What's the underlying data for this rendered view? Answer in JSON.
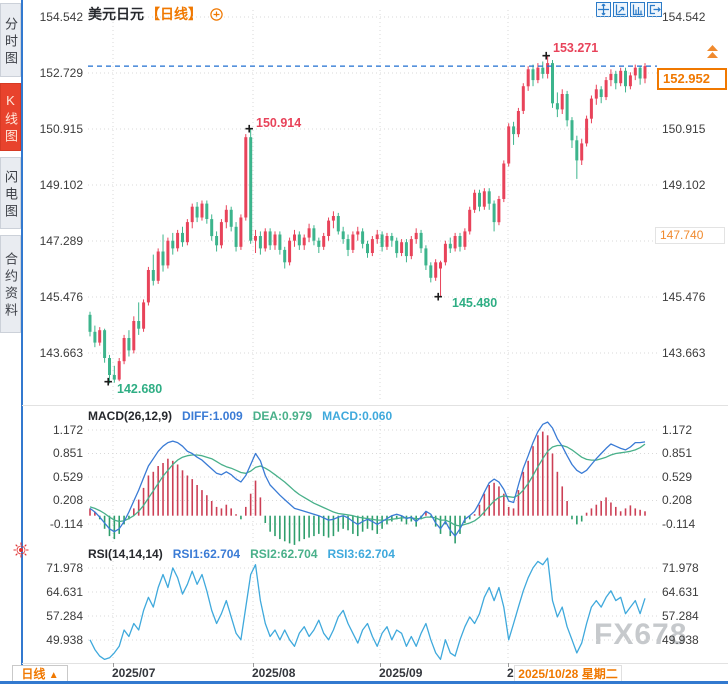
{
  "app": {
    "watermark": "FX678"
  },
  "sidebar": {
    "tabs": [
      {
        "label": "分时图",
        "active": false
      },
      {
        "label": "K线图",
        "active": true
      },
      {
        "label": "闪电图",
        "active": false
      },
      {
        "label": "合约资料",
        "active": false
      }
    ]
  },
  "header": {
    "symbol": "美元日元",
    "period_tag": "【日线】",
    "icons": {
      "add": "circle-plus-icon",
      "toolbar": [
        "crosshair-icon",
        "axis-scale-icon",
        "axis-pan-icon",
        "exit-icon"
      ],
      "settings": "sun-settings-icon",
      "flag_arrow": "double-up-arrow-icon"
    }
  },
  "annotations": {
    "marker_glyph": "+",
    "high1": "153.271",
    "high2": "150.914",
    "low1": "145.480",
    "low2": "142.680"
  },
  "price_flags": {
    "current": "152.952",
    "reference": "147.740"
  },
  "macd_header": {
    "name": "MACD(26,12,9)",
    "diff": "DIFF:1.009",
    "dea": "DEA:0.979",
    "macd": "MACD:0.060"
  },
  "rsi_header": {
    "name": "RSI(14,14,14)",
    "rsi1": "RSI1:62.704",
    "rsi2": "RSI2:62.704",
    "rsi3": "RSI3:62.704"
  },
  "bottom": {
    "period_button": "日线",
    "period_arrow": "▲",
    "x_labels": [
      "2025/07",
      "2025/08",
      "2025/09"
    ],
    "partial_label": "2025/10",
    "highlight_date": "2025/10/28 星期二"
  },
  "colors": {
    "up": "#e8435a",
    "down": "#3cb48c",
    "accent_orange": "#f07800",
    "diff_line": "#3a7bd5",
    "dea_line": "#49b08a",
    "rsi_line": "#3fa9dc",
    "current_line": "#1f6fd0",
    "grid": "#d9d9d9",
    "sidebar_active": "#e8432d",
    "toolbar_blue": "#2b7bc8",
    "hist_up": "#cc3f55",
    "hist_down": "#2e9e6c"
  },
  "chart_data": [
    {
      "type": "candlestick",
      "symbol": "美元日元",
      "interval": "日线",
      "y_axis": [
        "154.542",
        "152.729",
        "150.915",
        "149.102",
        "147.289",
        "145.476",
        "143.663"
      ],
      "right_hidden": [
        1,
        4
      ],
      "x_axis": [
        "2025/07",
        "2025/08",
        "2025/09",
        "2025/10"
      ],
      "current_price": 152.952,
      "reference_price": 147.74,
      "marked_points": [
        {
          "value": 153.271,
          "type": "high"
        },
        {
          "value": 150.914,
          "type": "high"
        },
        {
          "value": 145.48,
          "type": "low"
        },
        {
          "value": 142.68,
          "type": "low"
        }
      ],
      "candles": [
        [
          144.9,
          145.0,
          144.2,
          144.35
        ],
        [
          144.35,
          144.55,
          143.85,
          144.0
        ],
        [
          144.0,
          144.5,
          143.9,
          144.4
        ],
        [
          144.4,
          144.45,
          143.35,
          143.5
        ],
        [
          143.5,
          143.6,
          142.68,
          142.95
        ],
        [
          142.95,
          143.25,
          142.7,
          142.8
        ],
        [
          142.8,
          143.5,
          142.75,
          143.4
        ],
        [
          143.4,
          144.25,
          143.3,
          144.15
        ],
        [
          144.15,
          144.4,
          143.55,
          143.75
        ],
        [
          143.75,
          144.85,
          143.65,
          144.7
        ],
        [
          144.7,
          145.3,
          144.25,
          144.45
        ],
        [
          144.45,
          145.4,
          144.35,
          145.3
        ],
        [
          145.3,
          146.45,
          145.2,
          146.35
        ],
        [
          146.35,
          146.85,
          145.85,
          146.0
        ],
        [
          146.0,
          147.05,
          145.9,
          146.95
        ],
        [
          146.95,
          147.5,
          146.3,
          146.5
        ],
        [
          146.5,
          147.4,
          146.4,
          147.3
        ],
        [
          147.3,
          147.55,
          146.85,
          147.05
        ],
        [
          147.05,
          147.65,
          146.95,
          147.55
        ],
        [
          147.55,
          147.75,
          147.1,
          147.25
        ],
        [
          147.25,
          148.0,
          147.15,
          147.9
        ],
        [
          147.9,
          148.5,
          147.7,
          148.4
        ],
        [
          148.4,
          148.55,
          147.9,
          148.05
        ],
        [
          148.05,
          148.6,
          147.95,
          148.5
        ],
        [
          148.5,
          148.6,
          147.85,
          148.0
        ],
        [
          148.0,
          148.15,
          147.3,
          147.45
        ],
        [
          147.45,
          147.6,
          146.95,
          147.15
        ],
        [
          147.15,
          148.0,
          147.05,
          147.9
        ],
        [
          147.9,
          148.45,
          147.7,
          148.3
        ],
        [
          148.3,
          148.4,
          147.6,
          147.75
        ],
        [
          147.75,
          147.9,
          146.95,
          147.1
        ],
        [
          147.1,
          148.15,
          147.0,
          148.05
        ],
        [
          148.05,
          150.75,
          147.95,
          150.65
        ],
        [
          150.65,
          150.914,
          147.2,
          147.3
        ],
        [
          147.3,
          147.65,
          146.9,
          147.45
        ],
        [
          147.45,
          147.6,
          146.85,
          147.05
        ],
        [
          147.05,
          147.7,
          146.95,
          147.6
        ],
        [
          147.6,
          147.7,
          147.0,
          147.15
        ],
        [
          147.15,
          147.6,
          147.0,
          147.5
        ],
        [
          147.5,
          147.6,
          146.85,
          147.0
        ],
        [
          147.0,
          147.1,
          146.4,
          146.6
        ],
        [
          146.6,
          147.4,
          146.5,
          147.3
        ],
        [
          147.3,
          147.65,
          147.1,
          147.5
        ],
        [
          147.5,
          147.6,
          147.0,
          147.15
        ],
        [
          147.15,
          147.5,
          147.0,
          147.4
        ],
        [
          147.4,
          147.85,
          147.25,
          147.7
        ],
        [
          147.7,
          147.8,
          147.15,
          147.3
        ],
        [
          147.3,
          147.4,
          146.9,
          147.1
        ],
        [
          147.1,
          147.55,
          147.0,
          147.45
        ],
        [
          147.45,
          148.05,
          147.3,
          147.95
        ],
        [
          147.95,
          148.25,
          147.7,
          148.1
        ],
        [
          148.1,
          148.2,
          147.5,
          147.6
        ],
        [
          147.6,
          147.75,
          147.2,
          147.35
        ],
        [
          147.35,
          147.5,
          146.8,
          147.0
        ],
        [
          147.0,
          147.6,
          146.9,
          147.5
        ],
        [
          147.5,
          147.75,
          147.3,
          147.6
        ],
        [
          147.6,
          147.7,
          147.05,
          147.2
        ],
        [
          147.2,
          147.3,
          146.75,
          146.9
        ],
        [
          146.9,
          147.45,
          146.8,
          147.35
        ],
        [
          147.35,
          147.65,
          147.2,
          147.5
        ],
        [
          147.5,
          147.6,
          146.95,
          147.1
        ],
        [
          147.1,
          147.55,
          147.0,
          147.45
        ],
        [
          147.45,
          147.55,
          147.1,
          147.3
        ],
        [
          147.3,
          147.4,
          146.75,
          146.9
        ],
        [
          146.9,
          147.35,
          146.8,
          147.25
        ],
        [
          147.25,
          147.35,
          146.6,
          146.8
        ],
        [
          146.8,
          147.45,
          146.7,
          147.35
        ],
        [
          147.35,
          147.7,
          147.2,
          147.55
        ],
        [
          147.55,
          147.65,
          146.9,
          147.05
        ],
        [
          147.05,
          147.15,
          146.35,
          146.5
        ],
        [
          146.5,
          146.6,
          145.95,
          146.1
        ],
        [
          146.1,
          146.7,
          146.0,
          146.6
        ],
        [
          146.4,
          146.65,
          145.48,
          146.6
        ],
        [
          146.6,
          147.3,
          146.5,
          147.2
        ],
        [
          147.2,
          147.4,
          146.9,
          147.05
        ],
        [
          147.05,
          147.55,
          146.95,
          147.45
        ],
        [
          147.45,
          147.55,
          146.95,
          147.1
        ],
        [
          147.1,
          147.7,
          147.0,
          147.6
        ],
        [
          147.6,
          148.4,
          147.5,
          148.3
        ],
        [
          148.3,
          148.95,
          148.2,
          148.85
        ],
        [
          148.85,
          148.95,
          148.25,
          148.4
        ],
        [
          148.4,
          149.0,
          148.3,
          148.9
        ],
        [
          148.9,
          149.0,
          148.3,
          148.5
        ],
        [
          148.5,
          148.6,
          147.6,
          147.9
        ],
        [
          147.9,
          148.75,
          147.8,
          148.65
        ],
        [
          148.65,
          149.9,
          148.55,
          149.8
        ],
        [
          149.8,
          151.1,
          149.7,
          151.0
        ],
        [
          151.0,
          151.15,
          150.4,
          150.75
        ],
        [
          150.75,
          151.6,
          150.65,
          151.5
        ],
        [
          151.5,
          152.4,
          151.4,
          152.3
        ],
        [
          152.3,
          152.95,
          152.15,
          152.85
        ],
        [
          152.85,
          153.0,
          152.3,
          152.5
        ],
        [
          152.5,
          153.05,
          152.4,
          152.9
        ],
        [
          152.9,
          153.1,
          152.55,
          152.7
        ],
        [
          152.7,
          153.271,
          152.55,
          153.05
        ],
        [
          153.05,
          153.15,
          151.6,
          151.75
        ],
        [
          151.75,
          152.1,
          151.3,
          151.55
        ],
        [
          151.55,
          152.2,
          151.4,
          152.05
        ],
        [
          152.05,
          152.15,
          151.0,
          151.2
        ],
        [
          151.2,
          151.3,
          150.3,
          150.55
        ],
        [
          150.55,
          150.7,
          149.3,
          149.9
        ],
        [
          149.9,
          150.6,
          149.75,
          150.45
        ],
        [
          150.45,
          151.35,
          150.35,
          151.25
        ],
        [
          151.25,
          152.0,
          151.1,
          151.9
        ],
        [
          151.9,
          152.35,
          151.7,
          152.2
        ],
        [
          152.2,
          152.3,
          151.75,
          151.95
        ],
        [
          151.95,
          152.6,
          151.85,
          152.5
        ],
        [
          152.5,
          152.85,
          152.3,
          152.7
        ],
        [
          152.7,
          152.8,
          152.2,
          152.4
        ],
        [
          152.4,
          152.9,
          152.3,
          152.8
        ],
        [
          152.8,
          152.9,
          152.1,
          152.3
        ],
        [
          152.3,
          152.75,
          152.2,
          152.65
        ],
        [
          152.65,
          153.0,
          152.5,
          152.9
        ],
        [
          152.9,
          152.95,
          152.35,
          152.55
        ],
        [
          152.55,
          153.05,
          152.4,
          152.952
        ]
      ]
    },
    {
      "type": "macd",
      "params": [
        26,
        12,
        9
      ],
      "last": {
        "diff": 1.009,
        "dea": 0.979,
        "macd": 0.06
      },
      "y_axis": [
        "1.172",
        "0.851",
        "0.529",
        "0.208",
        "-0.114"
      ],
      "hist": [
        0.1,
        0.05,
        -0.05,
        -0.18,
        -0.28,
        -0.32,
        -0.25,
        -0.12,
        -0.05,
        0.1,
        0.22,
        0.38,
        0.55,
        0.6,
        0.68,
        0.72,
        0.78,
        0.75,
        0.7,
        0.62,
        0.55,
        0.5,
        0.42,
        0.35,
        0.28,
        0.2,
        0.12,
        0.1,
        0.15,
        0.1,
        0.02,
        -0.05,
        0.12,
        0.3,
        0.48,
        0.25,
        -0.1,
        -0.22,
        -0.28,
        -0.32,
        -0.35,
        -0.38,
        -0.4,
        -0.35,
        -0.32,
        -0.3,
        -0.28,
        -0.25,
        -0.28,
        -0.3,
        -0.28,
        -0.22,
        -0.18,
        -0.2,
        -0.25,
        -0.28,
        -0.22,
        -0.18,
        -0.2,
        -0.25,
        -0.18,
        -0.12,
        -0.08,
        -0.05,
        -0.08,
        -0.12,
        -0.08,
        -0.15,
        -0.05,
        0.05,
        -0.02,
        -0.15,
        -0.25,
        -0.12,
        -0.28,
        -0.38,
        -0.25,
        -0.1,
        -0.05,
        0.02,
        0.15,
        0.3,
        0.42,
        0.45,
        0.4,
        0.3,
        0.12,
        0.1,
        0.35,
        0.6,
        0.75,
        0.95,
        1.1,
        1.15,
        1.1,
        0.85,
        0.6,
        0.4,
        0.2,
        -0.05,
        -0.12,
        -0.08,
        0.04,
        0.1,
        0.15,
        0.2,
        0.25,
        0.18,
        0.12,
        0.06,
        0.1,
        0.14,
        0.1,
        0.08,
        0.06
      ],
      "diff": [
        0.1,
        0.05,
        -0.02,
        -0.1,
        -0.18,
        -0.22,
        -0.18,
        -0.08,
        0.05,
        0.2,
        0.35,
        0.52,
        0.68,
        0.78,
        0.88,
        0.95,
        1.0,
        1.02,
        1.0,
        0.95,
        0.88,
        0.85,
        0.8,
        0.76,
        0.7,
        0.64,
        0.58,
        0.56,
        0.6,
        0.56,
        0.5,
        0.46,
        0.55,
        0.7,
        0.85,
        0.75,
        0.55,
        0.42,
        0.35,
        0.28,
        0.22,
        0.16,
        0.1,
        0.08,
        0.06,
        0.04,
        0.02,
        0.0,
        -0.03,
        -0.06,
        -0.05,
        -0.02,
        0.0,
        -0.03,
        -0.08,
        -0.12,
        -0.08,
        -0.05,
        -0.08,
        -0.12,
        -0.08,
        -0.04,
        0.0,
        0.02,
        0.0,
        -0.04,
        -0.02,
        -0.08,
        -0.02,
        0.06,
        0.02,
        -0.1,
        -0.18,
        -0.08,
        -0.2,
        -0.28,
        -0.18,
        -0.05,
        0.0,
        0.06,
        0.18,
        0.32,
        0.45,
        0.5,
        0.46,
        0.36,
        0.2,
        0.18,
        0.42,
        0.65,
        0.82,
        1.0,
        1.15,
        1.25,
        1.28,
        1.2,
        1.05,
        0.95,
        0.82,
        0.7,
        0.62,
        0.58,
        0.62,
        0.7,
        0.78,
        0.85,
        0.92,
        0.98,
        0.95,
        0.92,
        0.9,
        0.94,
        1.0,
        1.0,
        1.009
      ],
      "dea": [
        0.12,
        0.1,
        0.07,
        0.03,
        -0.02,
        -0.06,
        -0.08,
        -0.07,
        -0.04,
        0.0,
        0.06,
        0.14,
        0.24,
        0.34,
        0.44,
        0.54,
        0.62,
        0.7,
        0.76,
        0.8,
        0.82,
        0.83,
        0.83,
        0.82,
        0.8,
        0.78,
        0.74,
        0.7,
        0.67,
        0.65,
        0.62,
        0.59,
        0.58,
        0.61,
        0.66,
        0.68,
        0.65,
        0.61,
        0.56,
        0.51,
        0.46,
        0.4,
        0.34,
        0.29,
        0.25,
        0.21,
        0.17,
        0.14,
        0.11,
        0.08,
        0.05,
        0.03,
        0.02,
        0.01,
        0.0,
        -0.02,
        -0.03,
        -0.04,
        -0.05,
        -0.06,
        -0.06,
        -0.06,
        -0.05,
        -0.04,
        -0.03,
        -0.03,
        -0.03,
        -0.04,
        -0.04,
        -0.02,
        -0.02,
        -0.03,
        -0.06,
        -0.06,
        -0.09,
        -0.13,
        -0.14,
        -0.12,
        -0.1,
        -0.07,
        -0.02,
        0.05,
        0.13,
        0.2,
        0.25,
        0.27,
        0.26,
        0.25,
        0.28,
        0.35,
        0.44,
        0.55,
        0.67,
        0.78,
        0.88,
        0.94,
        0.96,
        0.96,
        0.94,
        0.9,
        0.85,
        0.8,
        0.77,
        0.76,
        0.76,
        0.78,
        0.8,
        0.83,
        0.85,
        0.86,
        0.87,
        0.88,
        0.9,
        0.93,
        0.979
      ]
    },
    {
      "type": "line",
      "name": "RSI",
      "params": [
        14,
        14,
        14
      ],
      "last": {
        "rsi1": 62.704,
        "rsi2": 62.704,
        "rsi3": 62.704
      },
      "y_axis": [
        "71.978",
        "64.631",
        "57.284",
        "49.938"
      ],
      "values": [
        50,
        47,
        45,
        44,
        44.5,
        46,
        48,
        53,
        51,
        55,
        53,
        59,
        63,
        60,
        66,
        70,
        66,
        72,
        69,
        64,
        67,
        71,
        67,
        70,
        65,
        59,
        55,
        58,
        62,
        57,
        52,
        50,
        60,
        70,
        73,
        62,
        55,
        51,
        53,
        50,
        53,
        50,
        48,
        52,
        54,
        51,
        53,
        56,
        52,
        50,
        53,
        57,
        59,
        55,
        52,
        49,
        53,
        55,
        51,
        48,
        52,
        54,
        50,
        53,
        52,
        48,
        51,
        48,
        52,
        55,
        50,
        46,
        44,
        50,
        46,
        45,
        50,
        54,
        57,
        55,
        58,
        63,
        66,
        62,
        66,
        60,
        50,
        55,
        60,
        65,
        69,
        72,
        74,
        73,
        75,
        62,
        57,
        60,
        54,
        50,
        46,
        49,
        55,
        60,
        62,
        60,
        63,
        65,
        62,
        63,
        58,
        60,
        62,
        58,
        62.704
      ]
    }
  ]
}
